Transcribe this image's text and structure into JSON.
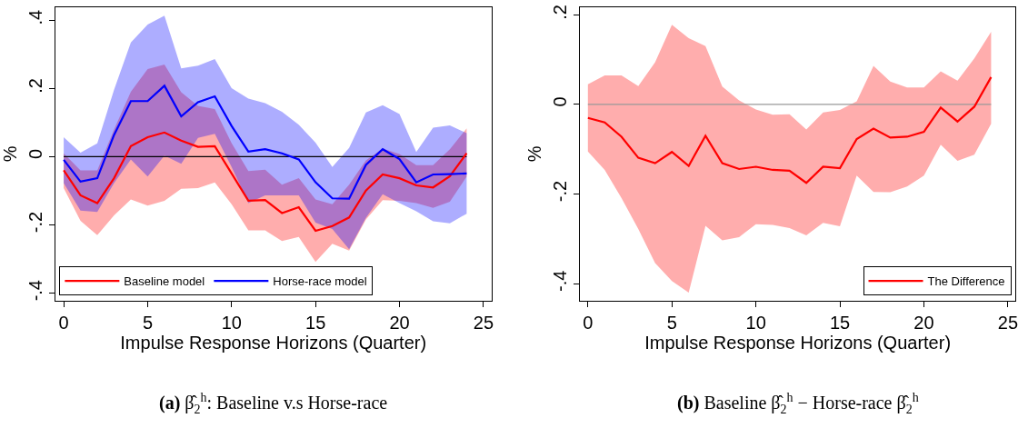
{
  "chart_data": [
    {
      "type": "line",
      "xlabel": "Impulse Response Horizons (Quarter)",
      "ylabel": "%",
      "x": [
        0,
        1,
        2,
        3,
        4,
        5,
        6,
        7,
        8,
        9,
        10,
        11,
        12,
        13,
        14,
        15,
        16,
        17,
        18,
        19,
        20,
        21,
        22,
        23,
        24
      ],
      "xlim": [
        -0.5,
        25.47
      ],
      "xticks": [
        0,
        5,
        10,
        15,
        20,
        25
      ],
      "ylim": [
        -0.422,
        0.438
      ],
      "yticks": [
        {
          "value": -0.4,
          "label": "-.4"
        },
        {
          "value": -0.2,
          "label": "-.2"
        },
        0,
        {
          "value": 0.2,
          "label": ".2"
        },
        {
          "value": 0.4,
          "label": ".4"
        }
      ],
      "series": [
        {
          "name": "Baseline model",
          "color": "#ff0000",
          "values": [
            -0.04,
            -0.113,
            -0.136,
            -0.063,
            0.031,
            0.057,
            0.071,
            0.047,
            0.029,
            0.031,
            -0.049,
            -0.129,
            -0.127,
            -0.165,
            -0.148,
            -0.217,
            -0.203,
            -0.178,
            -0.099,
            -0.052,
            -0.063,
            -0.084,
            -0.09,
            -0.057,
            0.01
          ],
          "upper": [
            0.01,
            -0.04,
            -0.04,
            0.08,
            0.19,
            0.257,
            0.27,
            0.189,
            0.149,
            0.14,
            0.04,
            -0.042,
            -0.038,
            -0.082,
            -0.063,
            -0.125,
            -0.139,
            -0.082,
            -0.011,
            0.024,
            0.008,
            -0.025,
            -0.025,
            0.022,
            0.083
          ],
          "lower": [
            -0.092,
            -0.188,
            -0.23,
            -0.172,
            -0.125,
            -0.143,
            -0.129,
            -0.094,
            -0.092,
            -0.075,
            -0.139,
            -0.216,
            -0.216,
            -0.247,
            -0.235,
            -0.308,
            -0.255,
            -0.275,
            -0.184,
            -0.127,
            -0.129,
            -0.136,
            -0.15,
            -0.132,
            -0.058
          ]
        },
        {
          "name": "Horse-race model",
          "color": "#0000ff",
          "values": [
            -0.009,
            -0.073,
            -0.063,
            0.064,
            0.163,
            0.163,
            0.208,
            0.118,
            0.16,
            0.177,
            0.09,
            0.015,
            0.022,
            0.01,
            -0.008,
            -0.075,
            -0.122,
            -0.123,
            -0.024,
            0.022,
            -0.007,
            -0.075,
            -0.052,
            -0.051,
            -0.049
          ],
          "upper": [
            0.057,
            0.012,
            0.039,
            0.196,
            0.335,
            0.387,
            0.413,
            0.259,
            0.267,
            0.286,
            0.201,
            0.17,
            0.157,
            0.132,
            0.094,
            0.041,
            -0.03,
            0.026,
            0.13,
            0.151,
            0.125,
            0.014,
            0.085,
            0.092,
            0.069
          ],
          "lower": [
            -0.077,
            -0.158,
            -0.162,
            -0.077,
            -0.008,
            -0.058,
            0.003,
            -0.021,
            0.055,
            0.067,
            -0.03,
            -0.136,
            -0.113,
            -0.113,
            -0.113,
            -0.193,
            -0.212,
            -0.271,
            -0.179,
            -0.11,
            -0.136,
            -0.16,
            -0.189,
            -0.195,
            -0.167
          ]
        }
      ],
      "ref_lines": [
        {
          "axis": "y",
          "value": 0,
          "color": "#000000"
        }
      ],
      "legend": "bottom left",
      "annotations": [
        "(a) β̂$_{2}$$^{h}$: Baseline v.s Horse-race"
      ]
    },
    {
      "type": "line",
      "xlabel": "Impulse Response Horizons (Quarter)",
      "ylabel": "%",
      "x": [
        0,
        1,
        2,
        3,
        4,
        5,
        6,
        7,
        8,
        9,
        10,
        11,
        12,
        13,
        14,
        15,
        16,
        17,
        18,
        19,
        20,
        21,
        22,
        23,
        24
      ],
      "xlim": [
        -0.46,
        25.44
      ],
      "xticks": [
        0,
        5,
        10,
        15,
        20,
        25
      ],
      "ylim": [
        -0.438,
        0.217
      ],
      "yticks": [
        {
          "value": -0.4,
          "label": "-.4"
        },
        {
          "value": -0.2,
          "label": "-.2"
        },
        0,
        {
          "value": 0.2,
          "label": ".2"
        }
      ],
      "series": [
        {
          "name": "The Difference",
          "color": "#ff0000",
          "values": [
            -0.03,
            -0.04,
            -0.072,
            -0.119,
            -0.131,
            -0.106,
            -0.137,
            -0.07,
            -0.131,
            -0.144,
            -0.139,
            -0.146,
            -0.148,
            -0.175,
            -0.139,
            -0.142,
            -0.077,
            -0.054,
            -0.074,
            -0.072,
            -0.061,
            -0.007,
            -0.038,
            -0.005,
            0.061
          ],
          "upper": [
            0.045,
            0.065,
            0.065,
            0.041,
            0.094,
            0.178,
            0.148,
            0.13,
            0.04,
            0.009,
            -0.011,
            -0.023,
            -0.022,
            -0.056,
            -0.018,
            -0.012,
            0.007,
            0.086,
            0.051,
            0.038,
            0.038,
            0.074,
            0.053,
            0.103,
            0.162
          ],
          "lower": [
            -0.105,
            -0.146,
            -0.209,
            -0.278,
            -0.354,
            -0.394,
            -0.42,
            -0.271,
            -0.303,
            -0.296,
            -0.267,
            -0.269,
            -0.276,
            -0.292,
            -0.264,
            -0.272,
            -0.159,
            -0.195,
            -0.196,
            -0.183,
            -0.159,
            -0.09,
            -0.126,
            -0.112,
            -0.043
          ]
        }
      ],
      "ref_lines": [
        {
          "axis": "y",
          "value": 0,
          "color": "#999999"
        }
      ],
      "legend": "bottom right",
      "annotations": [
        "(b) Baseline β̂$_{2}$$^{h}$ − Horse-race β̂$_{2}$$^{h}$"
      ]
    }
  ]
}
